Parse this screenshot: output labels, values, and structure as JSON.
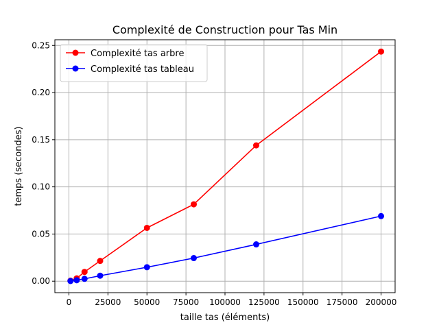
{
  "chart_data": {
    "type": "line",
    "title": "Complexité de Construction pour Tas Min",
    "xlabel": "taille tas (éléments)",
    "ylabel": "temps (secondes)",
    "xlim": [
      -9000,
      209000
    ],
    "ylim": [
      -0.0122,
      0.256
    ],
    "xticks": [
      0,
      25000,
      50000,
      75000,
      100000,
      125000,
      150000,
      175000,
      200000
    ],
    "xtick_labels": [
      "0",
      "25000",
      "50000",
      "75000",
      "100000",
      "125000",
      "150000",
      "175000",
      "200000"
    ],
    "yticks": [
      0.0,
      0.05,
      0.1,
      0.15,
      0.2,
      0.25
    ],
    "ytick_labels": [
      "0.00",
      "0.05",
      "0.10",
      "0.15",
      "0.20",
      "0.25"
    ],
    "grid": true,
    "legend_position": "top-left",
    "x": [
      1000,
      5000,
      10000,
      20000,
      50000,
      80000,
      120000,
      200000
    ],
    "series": [
      {
        "name": "Complexité tas arbre",
        "color": "#ff0000",
        "values": [
          0.0005,
          0.003,
          0.0098,
          0.0215,
          0.0565,
          0.0815,
          0.144,
          0.2435
        ]
      },
      {
        "name": "Complexité tas tableau",
        "color": "#0000ff",
        "values": [
          0.0002,
          0.001,
          0.0025,
          0.0058,
          0.0148,
          0.0245,
          0.039,
          0.069
        ]
      }
    ]
  }
}
